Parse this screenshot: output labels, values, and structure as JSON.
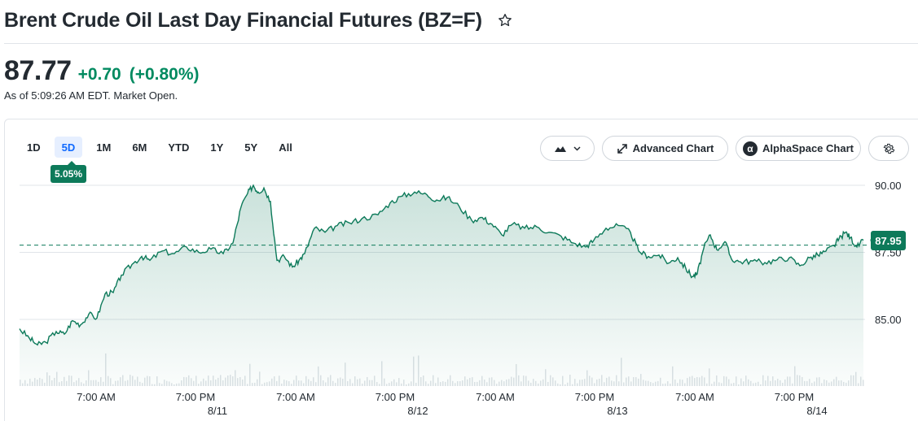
{
  "header": {
    "title": "Brent Crude Oil Last Day Financial Futures (BZ=F)"
  },
  "quote": {
    "price": "87.77",
    "change": "+0.70",
    "change_pct": "(+0.80%)",
    "as_of": "As of 5:09:26 AM EDT. Market Open."
  },
  "toolbar": {
    "ranges": [
      "1D",
      "5D",
      "1M",
      "6M",
      "YTD",
      "1Y",
      "5Y",
      "All"
    ],
    "active_range": "5D",
    "range_change": "5.05%",
    "advanced_chart_label": "Advanced Chart",
    "alphaspace_label": "AlphaSpace Chart",
    "alphaspace_logo": "α"
  },
  "colors": {
    "accent_green": "#008a60",
    "line_green": "#0d7a5a",
    "active_blue": "#0f69ff"
  },
  "chart_data": {
    "type": "area",
    "ylim": [
      83.6,
      90.4
    ],
    "y_ticks": [
      {
        "value": 90.0,
        "label": "90.00"
      },
      {
        "value": 87.5,
        "label": "87.50"
      },
      {
        "value": 85.0,
        "label": "85.00"
      }
    ],
    "reference_line": 87.77,
    "last_value_label": "87.95",
    "x_ticks": [
      {
        "t": 0.106,
        "label": "7:00 AM"
      },
      {
        "t": 0.228,
        "label": "7:00 PM"
      },
      {
        "t": 0.351,
        "label": "7:00 AM"
      },
      {
        "t": 0.473,
        "label": "7:00 PM"
      },
      {
        "t": 0.596,
        "label": "7:00 AM"
      },
      {
        "t": 0.718,
        "label": "7:00 PM"
      },
      {
        "t": 0.841,
        "label": "7:00 AM"
      },
      {
        "t": 0.963,
        "label": "7:00 PM"
      }
    ],
    "x_dates": [
      {
        "t": 0.255,
        "label": "8/11"
      },
      {
        "t": 0.501,
        "label": "8/12"
      },
      {
        "t": 0.746,
        "label": "8/13"
      },
      {
        "t": 0.991,
        "label": "8/14"
      }
    ],
    "series": [
      {
        "points": [
          [
            0.0,
            84.65
          ],
          [
            0.012,
            84.3
          ],
          [
            0.022,
            84.05
          ],
          [
            0.032,
            84.15
          ],
          [
            0.045,
            84.55
          ],
          [
            0.055,
            84.45
          ],
          [
            0.065,
            84.95
          ],
          [
            0.075,
            84.8
          ],
          [
            0.085,
            85.2
          ],
          [
            0.095,
            85.05
          ],
          [
            0.105,
            85.95
          ],
          [
            0.115,
            86.0
          ],
          [
            0.125,
            86.65
          ],
          [
            0.138,
            87.05
          ],
          [
            0.15,
            87.35
          ],
          [
            0.16,
            87.2
          ],
          [
            0.175,
            87.55
          ],
          [
            0.19,
            87.45
          ],
          [
            0.205,
            87.7
          ],
          [
            0.22,
            87.5
          ],
          [
            0.235,
            87.62
          ],
          [
            0.25,
            87.45
          ],
          [
            0.262,
            87.85
          ],
          [
            0.272,
            89.2
          ],
          [
            0.28,
            89.7
          ],
          [
            0.287,
            90.0
          ],
          [
            0.293,
            89.75
          ],
          [
            0.3,
            89.9
          ],
          [
            0.308,
            89.4
          ],
          [
            0.316,
            87.2
          ],
          [
            0.325,
            87.35
          ],
          [
            0.335,
            86.95
          ],
          [
            0.343,
            87.2
          ],
          [
            0.35,
            87.45
          ],
          [
            0.362,
            88.4
          ],
          [
            0.375,
            88.25
          ],
          [
            0.39,
            88.5
          ],
          [
            0.405,
            88.6
          ],
          [
            0.42,
            88.75
          ],
          [
            0.44,
            88.9
          ],
          [
            0.455,
            89.35
          ],
          [
            0.47,
            89.6
          ],
          [
            0.485,
            89.75
          ],
          [
            0.5,
            89.65
          ],
          [
            0.512,
            89.45
          ],
          [
            0.525,
            89.55
          ],
          [
            0.54,
            89.2
          ],
          [
            0.555,
            88.7
          ],
          [
            0.568,
            88.8
          ],
          [
            0.58,
            88.55
          ],
          [
            0.592,
            88.15
          ],
          [
            0.605,
            88.55
          ],
          [
            0.62,
            88.4
          ],
          [
            0.635,
            88.45
          ],
          [
            0.65,
            88.25
          ],
          [
            0.665,
            88.1
          ],
          [
            0.68,
            87.85
          ],
          [
            0.695,
            87.7
          ],
          [
            0.705,
            87.95
          ],
          [
            0.72,
            88.4
          ],
          [
            0.735,
            88.5
          ],
          [
            0.75,
            88.25
          ],
          [
            0.76,
            87.55
          ],
          [
            0.772,
            87.35
          ],
          [
            0.785,
            87.4
          ],
          [
            0.797,
            87.1
          ],
          [
            0.808,
            87.3
          ],
          [
            0.818,
            86.9
          ],
          [
            0.826,
            86.6
          ],
          [
            0.832,
            86.7
          ],
          [
            0.84,
            87.65
          ],
          [
            0.848,
            88.15
          ],
          [
            0.856,
            87.6
          ],
          [
            0.866,
            87.9
          ],
          [
            0.874,
            87.25
          ],
          [
            0.885,
            87.15
          ],
          [
            0.9,
            87.18
          ],
          [
            0.915,
            87.12
          ],
          [
            0.93,
            87.22
          ],
          [
            0.945,
            87.3
          ],
          [
            0.958,
            87.0
          ],
          [
            0.97,
            87.3
          ],
          [
            0.98,
            87.4
          ],
          [
            0.99,
            87.55
          ],
          [
            1.0,
            87.75
          ],
          [
            1.006,
            88.0
          ],
          [
            1.014,
            88.25
          ],
          [
            1.02,
            88.05
          ],
          [
            1.028,
            87.7
          ],
          [
            1.036,
            87.95
          ]
        ]
      }
    ]
  }
}
